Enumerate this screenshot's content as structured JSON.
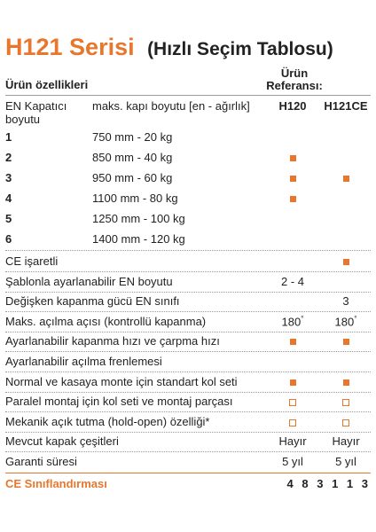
{
  "title": {
    "main": "H121 Serisi",
    "sub": "(Hızlı Seçim Tablosu)"
  },
  "header": {
    "features_label": "Ürün özellikleri",
    "reference_label_1": "Ürün",
    "reference_label_2": "Referansı:"
  },
  "intro_row": {
    "c1_line1": "EN Kapatıcı",
    "c1_line2": "boyutu",
    "c2": "maks. kapı boyutu [en - ağırlık]",
    "h120": "H120",
    "h121": "H121CE"
  },
  "size_rows": [
    {
      "size": "1",
      "spec": "750 mm - 20 kg",
      "h120": "",
      "h121": ""
    },
    {
      "size": "2",
      "spec": "850 mm - 40 kg",
      "h120": "filled",
      "h121": ""
    },
    {
      "size": "3",
      "spec": "950 mm - 60 kg",
      "h120": "filled",
      "h121": "filled"
    },
    {
      "size": "4",
      "spec": "1100 mm - 80 kg",
      "h120": "filled",
      "h121": ""
    },
    {
      "size": "5",
      "spec": "1250 mm - 100 kg",
      "h120": "",
      "h121": ""
    },
    {
      "size": "6",
      "spec": "1400 mm - 120 kg",
      "h120": "",
      "h121": ""
    }
  ],
  "feature_rows": [
    {
      "label": "CE işaretli",
      "h120": "",
      "h121": "filled"
    },
    {
      "label": "Şablonla ayarlanabilir EN boyutu",
      "h120": "2 - 4",
      "h121": ""
    },
    {
      "label": "Değişken kapanma gücü EN sınıfı",
      "h120": "",
      "h121": "3"
    },
    {
      "label": "Maks. açılma açısı (kontrollü kapanma)",
      "h120": "180",
      "h121": "180",
      "degree": "°"
    },
    {
      "label": "Ayarlanabilir kapanma hızı ve çarpma hızı",
      "h120": "filled",
      "h121": "filled"
    },
    {
      "label": "Ayarlanabilir açılma frenlemesi",
      "h120": "",
      "h121": ""
    },
    {
      "label": "Normal ve kasaya monte için standart kol seti",
      "h120": "filled",
      "h121": "filled"
    },
    {
      "label": "Paralel montaj için kol seti ve montaj parçası",
      "h120": "outline",
      "h121": "outline"
    },
    {
      "label": "Mekanik açık tutma (hold-open) özelliği*",
      "h120": "outline",
      "h121": "outline"
    },
    {
      "label": "Mevcut kapak çeşitleri",
      "h120": "Hayır",
      "h121": "Hayır"
    },
    {
      "label": "Garanti süresi",
      "h120": "5 yıl",
      "h121": "5 yıl"
    }
  ],
  "ce_row": {
    "label": "CE Sınıflandırması",
    "code": "4 8 3 1 1 3"
  },
  "colors": {
    "accent": "#e8772e",
    "text": "#222222",
    "rule": "#9a9a9a"
  }
}
